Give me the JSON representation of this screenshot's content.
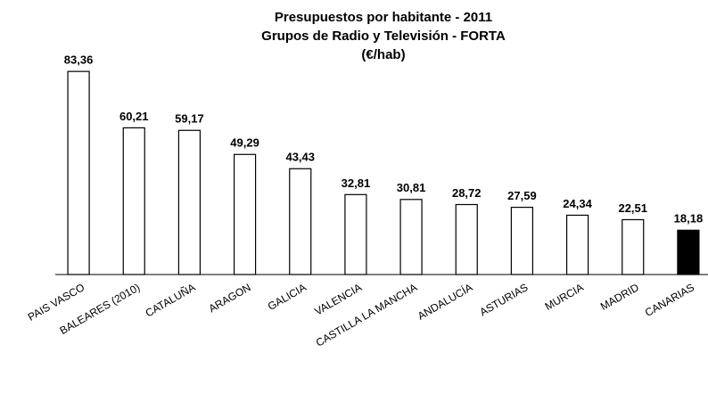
{
  "chart_data": {
    "type": "bar",
    "title": [
      "Presupuestos por habitante - 2011",
      "Grupos de Radio y Televisión -  FORTA",
      "(€/hab)"
    ],
    "categories": [
      "PAIS VASCO",
      "BALEARES (2010)",
      "CATALUÑA",
      "ARAGON",
      "GALICIA",
      "VALENCIA",
      "CASTILLA LA MANCHA",
      "ANDALUCÍA",
      "ASTURIAS",
      "MURCIA",
      "MADRID",
      "CANARIAS"
    ],
    "values": [
      83.36,
      60.21,
      59.17,
      49.29,
      43.43,
      32.81,
      30.81,
      28.72,
      27.59,
      24.34,
      22.51,
      18.18
    ],
    "value_labels": [
      "83,36",
      "60,21",
      "59,17",
      "49,29",
      "43,43",
      "32,81",
      "30,81",
      "28,72",
      "27,59",
      "24,34",
      "22,51",
      "18,18"
    ],
    "colors": [
      "#ffffff",
      "#ffffff",
      "#ffffff",
      "#ffffff",
      "#ffffff",
      "#ffffff",
      "#ffffff",
      "#ffffff",
      "#ffffff",
      "#ffffff",
      "#ffffff",
      "#000000"
    ],
    "ylim": [
      0,
      90
    ]
  }
}
